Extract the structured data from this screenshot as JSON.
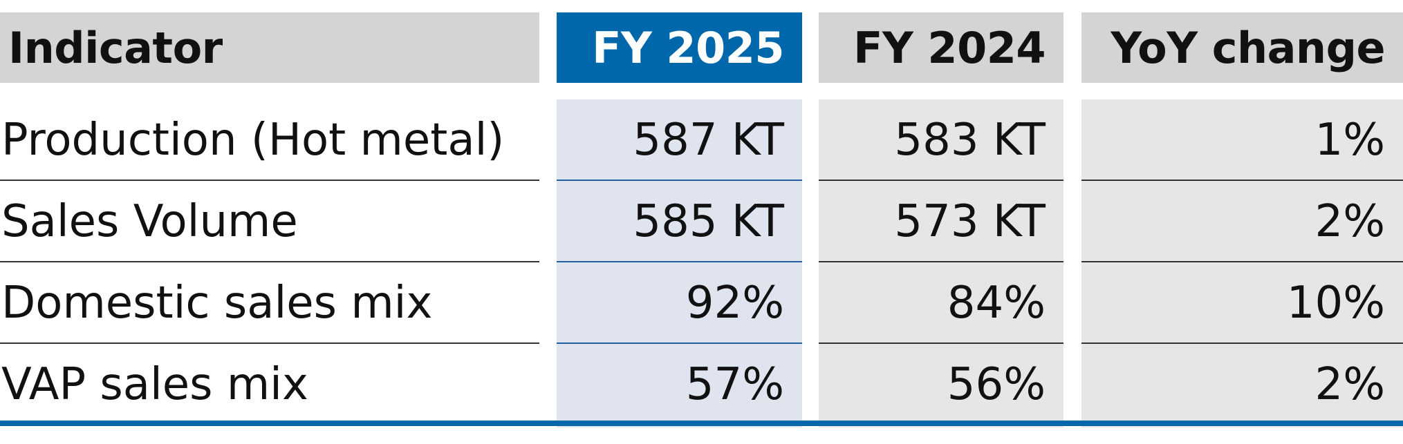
{
  "table": {
    "headers": [
      "Indicator",
      "FY 2025",
      "FY 2024",
      "YoY change"
    ],
    "rows": [
      [
        "Production (Hot metal)",
        "587 KT",
        "583 KT",
        "1%"
      ],
      [
        "Sales Volume",
        "585 KT",
        "573 KT",
        "2%"
      ],
      [
        "Domestic sales mix",
        "92%",
        "84%",
        "10%"
      ],
      [
        "VAP sales mix",
        "57%",
        "56%",
        "2%"
      ]
    ]
  },
  "colors": {
    "header_gray": "#d3d4d6",
    "highlight_blue": "#0067ab",
    "fy2025_body": "#dfe4ef",
    "other_body": "#e5e6e8"
  }
}
